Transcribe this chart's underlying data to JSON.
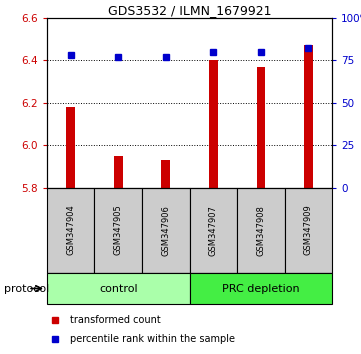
{
  "title": "GDS3532 / ILMN_1679921",
  "samples": [
    "GSM347904",
    "GSM347905",
    "GSM347906",
    "GSM347907",
    "GSM347908",
    "GSM347909"
  ],
  "red_values": [
    6.18,
    5.95,
    5.93,
    6.4,
    6.37,
    6.47
  ],
  "blue_values": [
    78,
    77,
    77,
    80,
    80,
    82
  ],
  "ylim_left": [
    5.8,
    6.6
  ],
  "ylim_right": [
    0,
    100
  ],
  "yticks_left": [
    5.8,
    6.0,
    6.2,
    6.4,
    6.6
  ],
  "yticks_right": [
    0,
    25,
    50,
    75,
    100
  ],
  "baseline": 5.8,
  "groups": [
    {
      "label": "control",
      "indices": [
        0,
        1,
        2
      ],
      "color": "#aaffaa"
    },
    {
      "label": "PRC depletion",
      "indices": [
        3,
        4,
        5
      ],
      "color": "#44ee44"
    }
  ],
  "red_color": "#cc0000",
  "blue_color": "#0000cc",
  "bar_bg_color": "#cccccc",
  "legend_red": "transformed count",
  "legend_blue": "percentile rank within the sample",
  "protocol_label": "protocol",
  "gridline_color": "#000000"
}
